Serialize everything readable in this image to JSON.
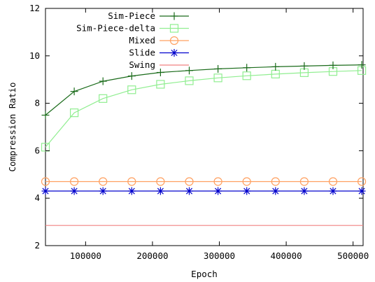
{
  "chart_data": {
    "type": "line",
    "title": "",
    "xlabel": "Epoch",
    "ylabel": "Compression Ratio",
    "xlim": [
      40000,
      515000
    ],
    "ylim": [
      2,
      12
    ],
    "xticks": [
      100000,
      200000,
      300000,
      400000,
      500000
    ],
    "xtick_labels": [
      "100000",
      "200000",
      "300000",
      "400000",
      "500000"
    ],
    "yticks": [
      2,
      4,
      6,
      8,
      10,
      12
    ],
    "ytick_labels": [
      "2",
      "4",
      "6",
      "8",
      "10",
      "12"
    ],
    "grid": false,
    "legend_position": "top-right",
    "x": [
      40000,
      83000,
      126000,
      169000,
      212000,
      255000,
      298000,
      341000,
      384000,
      427000,
      470000,
      513000
    ],
    "series": [
      {
        "name": "Sim-Piece",
        "color": "#1a6b1a",
        "marker": "plus",
        "values": [
          7.5,
          8.5,
          8.93,
          9.15,
          9.3,
          9.38,
          9.45,
          9.5,
          9.54,
          9.57,
          9.6,
          9.62
        ]
      },
      {
        "name": "Sim-Piece-delta",
        "color": "#90ee90",
        "marker": "square",
        "values": [
          6.15,
          7.6,
          8.2,
          8.57,
          8.8,
          8.95,
          9.07,
          9.16,
          9.23,
          9.29,
          9.34,
          9.38
        ]
      },
      {
        "name": "Mixed",
        "color": "#ffa060",
        "marker": "circle",
        "values": [
          4.7,
          4.7,
          4.7,
          4.7,
          4.7,
          4.7,
          4.7,
          4.7,
          4.7,
          4.7,
          4.7,
          4.7
        ]
      },
      {
        "name": "Slide",
        "color": "#0000cd",
        "marker": "star",
        "values": [
          4.3,
          4.3,
          4.3,
          4.3,
          4.3,
          4.3,
          4.3,
          4.3,
          4.3,
          4.3,
          4.3,
          4.3
        ]
      },
      {
        "name": "Swing",
        "color": "#f08080",
        "marker": "none",
        "values": [
          2.85,
          2.85,
          2.85,
          2.85,
          2.85,
          2.85,
          2.85,
          2.85,
          2.85,
          2.85,
          2.85,
          2.85
        ]
      }
    ]
  }
}
